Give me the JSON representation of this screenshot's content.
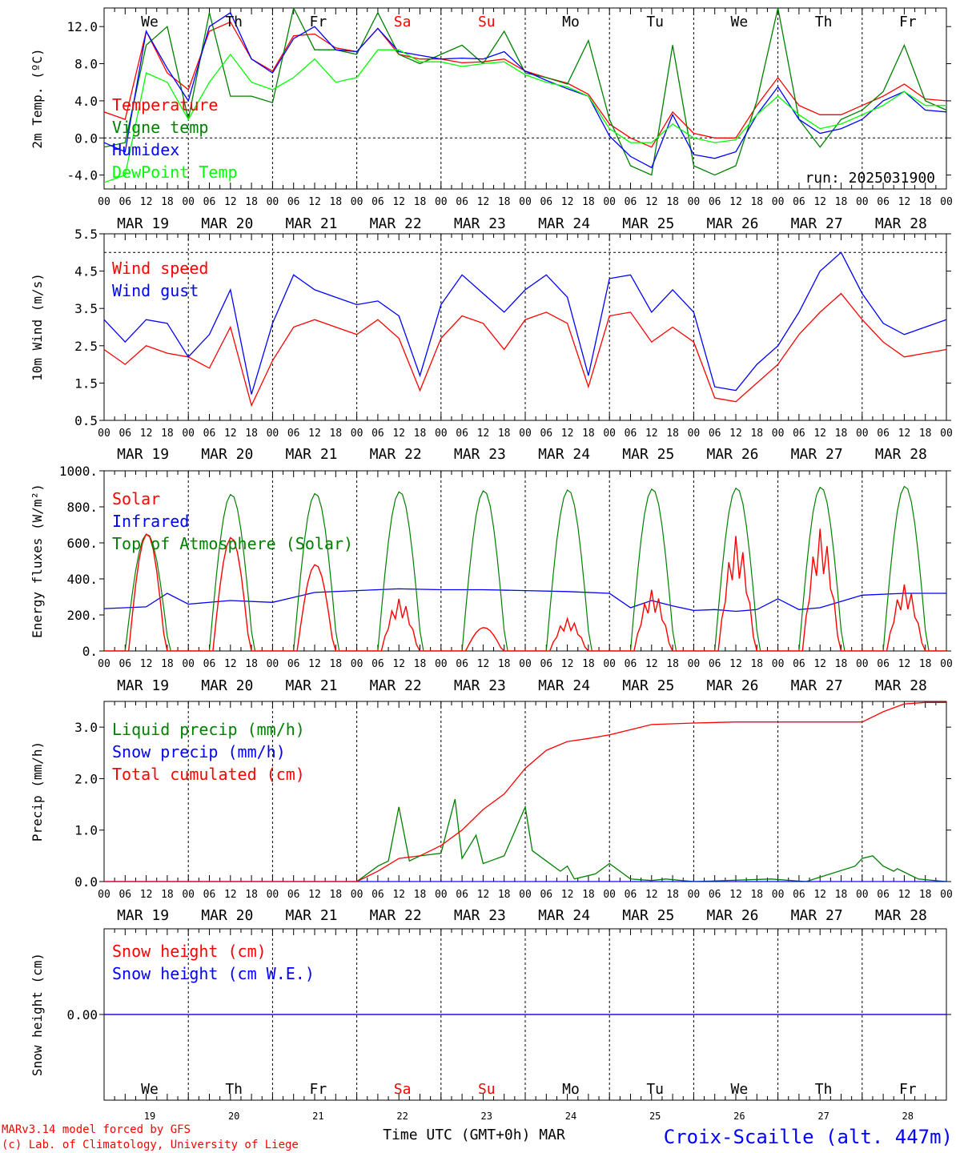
{
  "chart_data": [
    {
      "type": "line",
      "ylabel": "2m Temp. (ºC)",
      "ylim": [
        -5.5,
        14
      ],
      "yticks": [
        "12.0",
        "8.0",
        "4.0",
        "0.0",
        "-4.0"
      ],
      "ytick_values": [
        12,
        8,
        4,
        0,
        -4
      ],
      "reference_line": 0,
      "annotation": "run: 2025031900",
      "legend": [
        "Temperature",
        "Vigne temp",
        "Humidex",
        "DewPoint Temp"
      ],
      "series": [
        {
          "name": "Temperature",
          "color": "#ff0000",
          "x": [
            0,
            6,
            12,
            18,
            24,
            30,
            36,
            42,
            48,
            54,
            60,
            66,
            72,
            78,
            84,
            90,
            96,
            102,
            108,
            114,
            120,
            126,
            132,
            138,
            144,
            150,
            156,
            162,
            168,
            174,
            180,
            186,
            192,
            198,
            204,
            210,
            216,
            222,
            228,
            234,
            240
          ],
          "values": [
            2.8,
            2,
            11.5,
            7,
            5.2,
            11.5,
            12.5,
            8.5,
            7.2,
            11,
            11.2,
            9.7,
            9.3,
            11.8,
            9,
            8.5,
            8.5,
            8.1,
            8.2,
            8.5,
            7.2,
            6.5,
            5.9,
            4.7,
            1.5,
            0,
            -1,
            2.8,
            0.5,
            0,
            0,
            3.5,
            6.5,
            3.5,
            2.5,
            2.5,
            3.5,
            4.5,
            5.8,
            4.2,
            4
          ]
        },
        {
          "name": "Vigne temp",
          "color": "#008000",
          "x": [
            0,
            6,
            12,
            18,
            24,
            30,
            36,
            42,
            48,
            54,
            60,
            66,
            72,
            78,
            84,
            90,
            96,
            102,
            108,
            114,
            120,
            126,
            132,
            138,
            144,
            150,
            156,
            162,
            168,
            174,
            180,
            186,
            192,
            198,
            204,
            210,
            216,
            222,
            228,
            234,
            240
          ],
          "values": [
            -1,
            -0.5,
            10,
            12,
            2,
            13.5,
            4.5,
            4.5,
            3.8,
            14,
            9.5,
            9.5,
            9,
            13.5,
            9,
            8,
            9,
            10,
            8,
            11.5,
            7,
            6.5,
            5.8,
            10.5,
            2,
            -3,
            -4,
            10,
            -3,
            -4,
            -3,
            4,
            14,
            2,
            -1,
            2,
            3,
            5,
            10,
            4,
            3
          ]
        },
        {
          "name": "Humidex",
          "color": "#0000ff",
          "x": [
            0,
            6,
            12,
            18,
            24,
            30,
            36,
            42,
            48,
            54,
            60,
            66,
            72,
            78,
            84,
            90,
            96,
            102,
            108,
            114,
            120,
            126,
            132,
            138,
            144,
            150,
            156,
            162,
            168,
            174,
            180,
            186,
            192,
            198,
            204,
            210,
            216,
            222,
            228,
            234,
            240
          ],
          "values": [
            -0.5,
            -1.5,
            11.5,
            7.5,
            4,
            12,
            13.5,
            8.5,
            7,
            10.7,
            12,
            9.5,
            9.3,
            11.8,
            9.3,
            8.9,
            8.5,
            8.6,
            8.5,
            9.3,
            7.2,
            6.2,
            5.3,
            4.5,
            0.2,
            -2,
            -3.2,
            2.5,
            -1.8,
            -2.2,
            -1.5,
            2.5,
            5.5,
            2,
            0.5,
            1,
            2,
            4,
            5,
            3,
            2.8
          ]
        },
        {
          "name": "DewPoint Temp",
          "color": "#00ff00",
          "x": [
            0,
            6,
            12,
            18,
            24,
            30,
            36,
            42,
            48,
            54,
            60,
            66,
            72,
            78,
            84,
            90,
            96,
            102,
            108,
            114,
            120,
            126,
            132,
            138,
            144,
            150,
            156,
            162,
            168,
            174,
            180,
            186,
            192,
            198,
            204,
            210,
            216,
            222,
            228,
            234,
            240
          ],
          "values": [
            -4.8,
            -4,
            7,
            6,
            2,
            6,
            9,
            6,
            5.2,
            6.5,
            8.5,
            6,
            6.5,
            9.5,
            9.5,
            8.2,
            8.2,
            7.7,
            8,
            8.2,
            6.8,
            6,
            5.5,
            4.5,
            1,
            -0.5,
            -0.5,
            1.5,
            0,
            -0.5,
            -0.2,
            2.5,
            4.5,
            2.5,
            1,
            1.5,
            2.5,
            3.5,
            5,
            3.5,
            3.5
          ]
        }
      ]
    },
    {
      "type": "line",
      "ylabel": "10m Wind (m/s)",
      "ylim": [
        0.5,
        5.5
      ],
      "yticks": [
        "5.5",
        "4.5",
        "3.5",
        "2.5",
        "1.5",
        "0.5"
      ],
      "ytick_values": [
        5.5,
        4.5,
        3.5,
        2.5,
        1.5,
        0.5
      ],
      "reference_line": 5,
      "legend": [
        "Wind speed",
        "Wind gust"
      ],
      "series": [
        {
          "name": "Wind speed",
          "color": "#ff0000",
          "x": [
            0,
            6,
            12,
            18,
            24,
            30,
            36,
            42,
            48,
            54,
            60,
            66,
            72,
            78,
            84,
            90,
            96,
            102,
            108,
            114,
            120,
            126,
            132,
            138,
            144,
            150,
            156,
            162,
            168,
            174,
            180,
            186,
            192,
            198,
            204,
            210,
            216,
            222,
            228,
            234,
            240
          ],
          "values": [
            2.4,
            2,
            2.5,
            2.3,
            2.2,
            1.9,
            3,
            0.9,
            2.1,
            3,
            3.2,
            3,
            2.8,
            3.2,
            2.7,
            1.3,
            2.7,
            3.3,
            3.1,
            2.4,
            3.2,
            3.4,
            3.1,
            1.4,
            3.3,
            3.4,
            2.6,
            3,
            2.6,
            1.1,
            1,
            1.5,
            2,
            2.8,
            3.4,
            3.9,
            3.2,
            2.6,
            2.2,
            2.3,
            2.4
          ]
        },
        {
          "name": "Wind gust",
          "color": "#0000ff",
          "x": [
            0,
            6,
            12,
            18,
            24,
            30,
            36,
            42,
            48,
            54,
            60,
            66,
            72,
            78,
            84,
            90,
            96,
            102,
            108,
            114,
            120,
            126,
            132,
            138,
            144,
            150,
            156,
            162,
            168,
            174,
            180,
            186,
            192,
            198,
            204,
            210,
            216,
            222,
            228,
            234,
            240
          ],
          "values": [
            3.2,
            2.6,
            3.2,
            3.1,
            2.2,
            2.8,
            4,
            1.2,
            3.1,
            4.4,
            4,
            3.8,
            3.6,
            3.7,
            3.3,
            1.7,
            3.6,
            4.4,
            3.9,
            3.4,
            4,
            4.4,
            3.8,
            1.7,
            4.3,
            4.4,
            3.4,
            4,
            3.4,
            1.4,
            1.3,
            2,
            2.5,
            3.4,
            4.5,
            5,
            3.9,
            3.1,
            2.8,
            3,
            3.2
          ]
        }
      ]
    },
    {
      "type": "line",
      "ylabel": "Energy fluxes (W/m²)",
      "ylim": [
        0,
        1000
      ],
      "yticks": [
        "1000.",
        "800.",
        "600.",
        "400.",
        "200.",
        "0."
      ],
      "ytick_values": [
        1000,
        800,
        600,
        400,
        200,
        0
      ],
      "legend": [
        "Solar",
        "Infrared",
        "Top of Atmosphere (Solar)"
      ],
      "toa_peaks": [
        650,
        870,
        875,
        885,
        890,
        895,
        900,
        905,
        910,
        915
      ],
      "solar_peaks": [
        650,
        630,
        480,
        290,
        130,
        180,
        340,
        640,
        680,
        370
      ],
      "series": [
        {
          "name": "Infrared",
          "color": "#0000ff",
          "x": [
            0,
            12,
            18,
            24,
            36,
            48,
            60,
            72,
            84,
            96,
            108,
            120,
            132,
            144,
            150,
            156,
            162,
            168,
            174,
            180,
            186,
            192,
            198,
            204,
            216,
            228,
            240
          ],
          "values": [
            235,
            245,
            320,
            260,
            280,
            270,
            325,
            335,
            345,
            340,
            340,
            335,
            330,
            320,
            240,
            280,
            250,
            225,
            230,
            220,
            230,
            290,
            230,
            240,
            310,
            320,
            320
          ]
        }
      ]
    },
    {
      "type": "line",
      "ylabel": "Precip (mm/h)",
      "ylim": [
        0,
        3.5
      ],
      "yticks": [
        "3.0",
        "2.0",
        "1.0",
        "0.0"
      ],
      "ytick_values": [
        3,
        2,
        1,
        0
      ],
      "legend": [
        "Liquid precip (mm/h)",
        "Snow precip (mm/h)",
        "Total cumulated (cm)"
      ],
      "series": [
        {
          "name": "Liquid precip (mm/h)",
          "color": "#008000",
          "x": [
            0,
            60,
            72,
            78,
            81,
            84,
            87,
            90,
            96,
            100,
            102,
            106,
            108,
            110,
            114,
            120,
            122,
            126,
            130,
            132,
            134,
            140,
            144,
            150,
            156,
            160,
            168,
            190,
            200,
            214,
            216,
            219,
            222,
            225,
            226,
            232,
            240
          ],
          "values": [
            0,
            0,
            0,
            0.3,
            0.4,
            1.45,
            0.4,
            0.5,
            0.55,
            1.6,
            0.45,
            0.9,
            0.35,
            0.4,
            0.5,
            1.45,
            0.6,
            0.4,
            0.2,
            0.3,
            0.05,
            0.15,
            0.35,
            0.05,
            0.02,
            0.05,
            0,
            0.05,
            0,
            0.3,
            0.45,
            0.5,
            0.3,
            0.2,
            0.25,
            0.05,
            0
          ]
        },
        {
          "name": "Snow precip (mm/h)",
          "color": "#0000ff",
          "x": [
            0,
            240
          ],
          "values": [
            0,
            0
          ]
        },
        {
          "name": "Total cumulated (cm)",
          "color": "#ff0000",
          "x": [
            0,
            60,
            72,
            78,
            84,
            90,
            96,
            102,
            108,
            114,
            120,
            126,
            132,
            138,
            144,
            156,
            168,
            180,
            216,
            222,
            228,
            234,
            240
          ],
          "values": [
            0,
            0,
            0,
            0.2,
            0.45,
            0.5,
            0.7,
            1,
            1.4,
            1.7,
            2.2,
            2.55,
            2.72,
            2.78,
            2.85,
            3.05,
            3.08,
            3.1,
            3.1,
            3.3,
            3.45,
            3.48,
            3.48
          ]
        }
      ]
    },
    {
      "type": "line",
      "ylabel": "Snow height (cm)",
      "ylim": [
        -1,
        1
      ],
      "yticks": [
        "0.00"
      ],
      "ytick_values": [
        0
      ],
      "legend": [
        "Snow height (cm)",
        "Snow height (cm W.E.)"
      ],
      "series": [
        {
          "name": "Snow height (cm)",
          "color": "#ff0000",
          "x": [
            0,
            240
          ],
          "values": [
            0,
            0
          ]
        },
        {
          "name": "Snow height (cm W.E.)",
          "color": "#0000ff",
          "x": [
            0,
            240
          ],
          "values": [
            0,
            0
          ]
        }
      ]
    }
  ],
  "x_axis": {
    "hour_ticks": [
      "00",
      "06",
      "12",
      "18"
    ],
    "final_tick": "00",
    "date_labels": [
      "MAR 19",
      "MAR 20",
      "MAR 21",
      "MAR 22",
      "MAR 23",
      "MAR 24",
      "MAR 25",
      "MAR 26",
      "MAR 27",
      "MAR 28"
    ],
    "weekdays": [
      "We",
      "Th",
      "Fr",
      "Sa",
      "Su",
      "Mo",
      "Tu",
      "We",
      "Th",
      "Fr"
    ],
    "weekend_color": "#ff0000",
    "weekday_color": "#000000",
    "day_numbers": [
      "19",
      "20",
      "21",
      "22",
      "23",
      "24",
      "25",
      "26",
      "27",
      "28"
    ],
    "xlabel": "Time UTC (GMT+0h) MAR"
  },
  "footer": {
    "credit_line1": "MARv3.14 model forced by GFS",
    "credit_line2": "(c) Lab. of Climatology, University of Liege",
    "station": "Croix-Scaille (alt. 447m)"
  }
}
